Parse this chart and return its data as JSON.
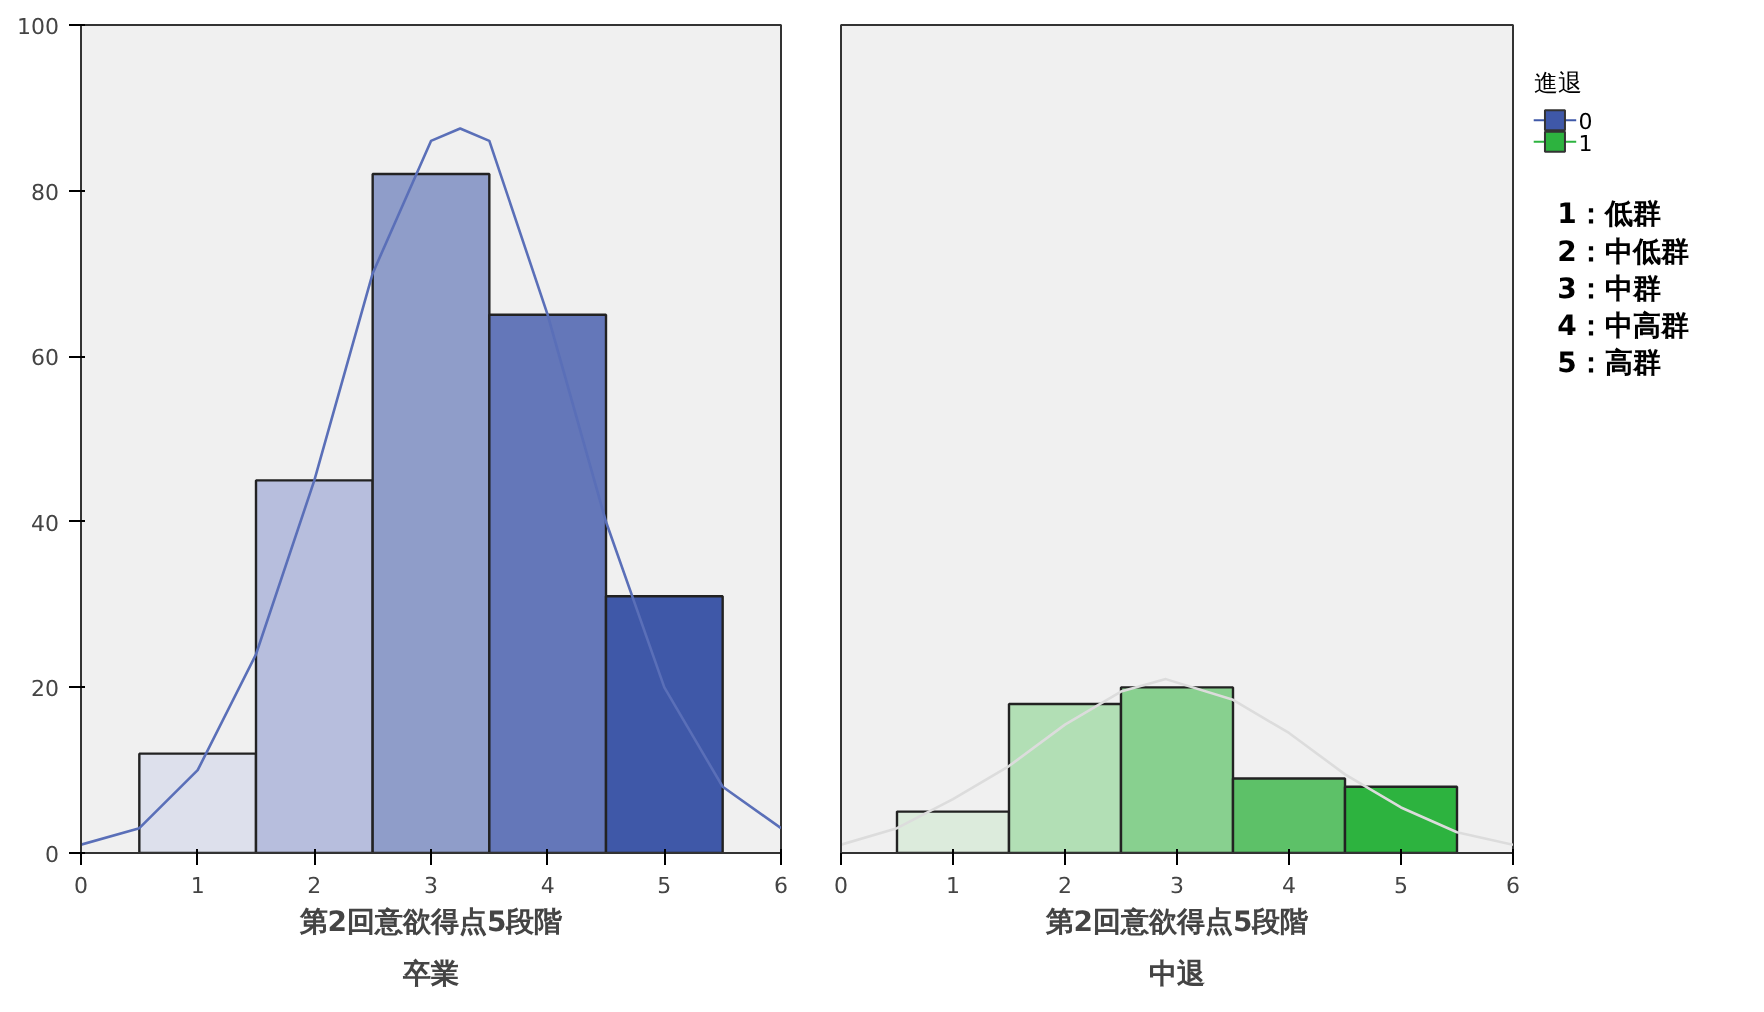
{
  "chart_data": [
    {
      "type": "histogram",
      "title": "卒業",
      "xlabel": "第2回意欲得点5段階",
      "bins": [
        0.5,
        1.5,
        2.5,
        3.5,
        4.5,
        5.5
      ],
      "xlim": [
        0,
        6
      ],
      "xticks": [
        0,
        1,
        2,
        3,
        4,
        5,
        6
      ],
      "ylim": [
        0,
        100
      ],
      "yticks": [
        0,
        20,
        40,
        60,
        80,
        100
      ],
      "grid": false,
      "series": [
        {
          "name": "0",
          "color": "#3f58a8",
          "colors": [
            "#dde0ec",
            "#b7bedd",
            "#8f9dc9",
            "#6477b9",
            "#3f58a8"
          ],
          "values": [
            12,
            45,
            82,
            65,
            31
          ]
        },
        {
          "type": "line",
          "color": "#5a6fb8",
          "x": [
            0,
            0.5,
            1,
            1.5,
            2,
            2.5,
            3,
            3.25,
            3.5,
            4,
            4.5,
            5,
            5.5,
            6
          ],
          "values": [
            1,
            3,
            10,
            24,
            45,
            70,
            86,
            87.5,
            86,
            65,
            40,
            20,
            8,
            3
          ]
        }
      ]
    },
    {
      "type": "histogram",
      "title": "中退",
      "xlabel": "第2回意欲得点5段階",
      "bins": [
        0.5,
        1.5,
        2.5,
        3.5,
        4.5,
        5.5
      ],
      "xlim": [
        0,
        6
      ],
      "xticks": [
        0,
        1,
        2,
        3,
        4,
        5,
        6
      ],
      "ylim": [
        0,
        100
      ],
      "yticks": [
        0,
        20,
        40,
        60,
        80,
        100
      ],
      "tick_labels": "x",
      "grid": false,
      "legend": "right",
      "legend_title": "進退",
      "annotations": [
        "1：低群",
        "2：中低群",
        "3：中群",
        "4：中高群",
        "5：高群"
      ],
      "series": [
        {
          "name": "1",
          "color": "#2db33f",
          "colors": [
            "#dcebdc",
            "#b2dfb5",
            "#88d08f",
            "#5dc168",
            "#2db33f"
          ],
          "values": [
            5,
            18,
            20,
            9,
            8
          ]
        },
        {
          "type": "line",
          "color": "#dcdcdc",
          "x": [
            0,
            0.5,
            1,
            1.5,
            2,
            2.5,
            2.9,
            3.5,
            4,
            4.5,
            5,
            5.5,
            6
          ],
          "values": [
            1,
            3,
            6.5,
            10.5,
            15.5,
            19.5,
            21,
            18.5,
            14.5,
            9.5,
            5.5,
            2.5,
            1
          ]
        }
      ]
    }
  ]
}
